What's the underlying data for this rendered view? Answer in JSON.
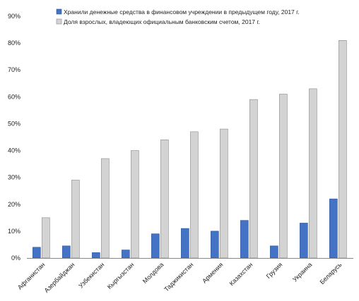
{
  "chart_data": {
    "type": "bar",
    "categories": [
      "Афганистан",
      "Азербайджан",
      "Узбекистан",
      "Кыргызстан",
      "Молдова",
      "Таджикистан",
      "Армения",
      "Казахстан",
      "Грузия",
      "Украина",
      "Беларусь"
    ],
    "series": [
      {
        "name": "Хранили денежные средства в финансовом учреждении в предыдущем году, 2017 г.",
        "color": "#4472c4",
        "values": [
          4,
          4.5,
          2,
          3,
          9,
          11,
          10,
          14,
          4.5,
          13,
          22
        ]
      },
      {
        "name": "Доля взрослых, владеющих официальным банковским счетом, 2017 г.",
        "color": "#d3d3d3",
        "values": [
          15,
          29,
          37,
          40,
          44,
          47,
          48,
          59,
          61,
          63,
          81
        ]
      }
    ],
    "yticks": [
      "0%",
      "10%",
      "20%",
      "30%",
      "40%",
      "50%",
      "60%",
      "70%",
      "80%",
      "90%"
    ],
    "ylim": [
      0,
      90
    ],
    "grid": false,
    "legend": "top-left"
  }
}
